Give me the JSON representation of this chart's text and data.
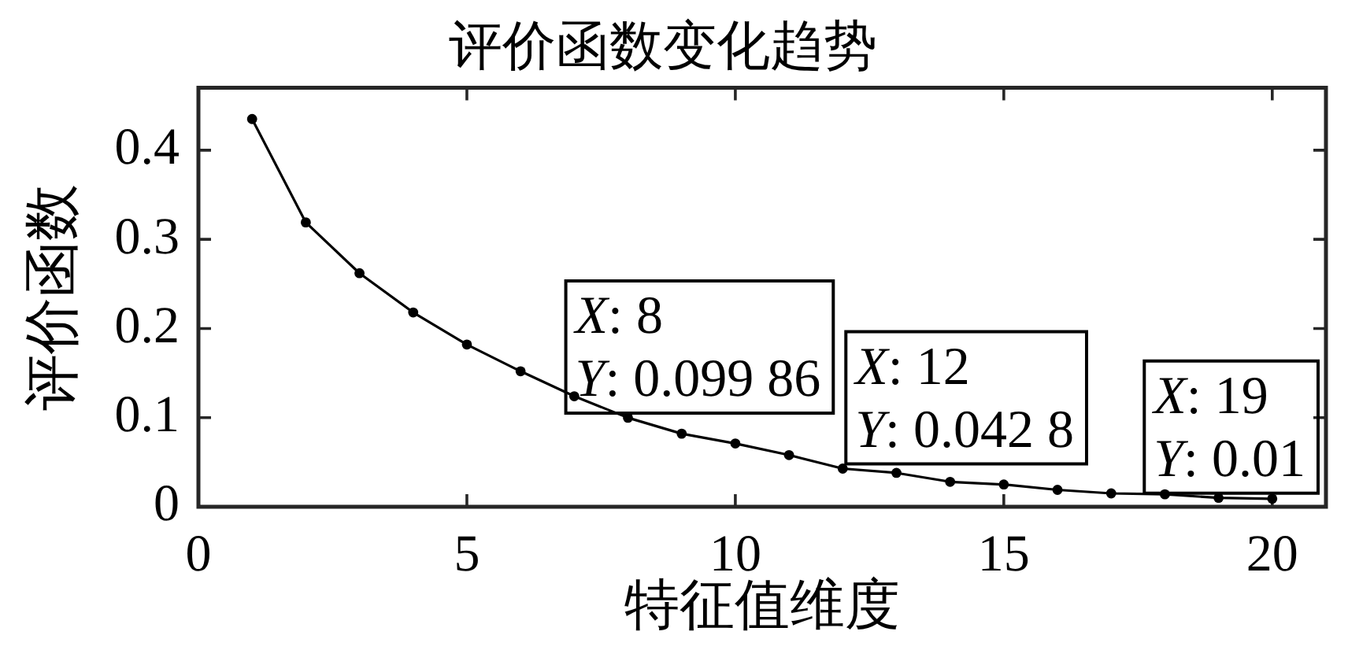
{
  "chart_data": {
    "type": "line",
    "title": "评价函数变化趋势",
    "xlabel": "特征值维度",
    "ylabel": "评价函数",
    "x": [
      1,
      2,
      3,
      4,
      5,
      6,
      7,
      8,
      9,
      10,
      11,
      12,
      13,
      14,
      15,
      16,
      17,
      18,
      19,
      20
    ],
    "values": [
      0.435,
      0.319,
      0.262,
      0.218,
      0.182,
      0.152,
      0.124,
      0.09986,
      0.082,
      0.071,
      0.058,
      0.0428,
      0.038,
      0.028,
      0.025,
      0.019,
      0.015,
      0.014,
      0.01,
      0.009
    ],
    "color": "#000000",
    "marker": "circle",
    "line_style": "solid",
    "xlim": [
      0,
      21
    ],
    "xticks": [
      0,
      5,
      10,
      15,
      20
    ],
    "ylim": [
      0,
      0.47
    ],
    "yticks": [
      0,
      0.1,
      0.2,
      0.3,
      0.4
    ],
    "grid": false,
    "legend": false,
    "annotations": [
      {
        "text": "X: 8\nY: 0.099 86",
        "x": 8,
        "y": 0.09986
      },
      {
        "text": "X: 12\nY: 0.042 8",
        "x": 12,
        "y": 0.0428
      },
      {
        "text": "X: 19\nY: 0.01",
        "x": 19,
        "y": 0.01
      }
    ]
  }
}
